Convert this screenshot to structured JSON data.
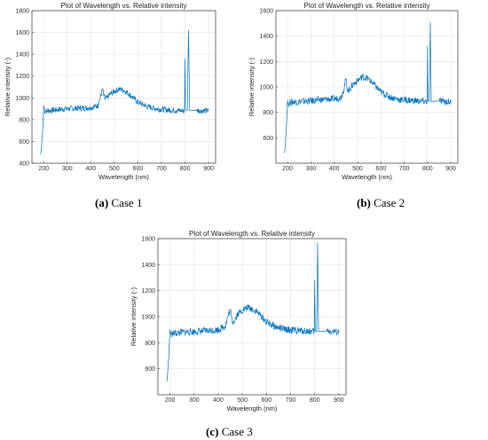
{
  "chart_data": [
    {
      "type": "line",
      "title": "Plot of Wavelength vs. Relative intensity",
      "xlabel": "Wavelength (nm)",
      "ylabel": "Relative intensity (-)",
      "xlim": [
        150,
        930
      ],
      "ylim": [
        400,
        1800
      ],
      "xticks": [
        "200",
        "300",
        "400",
        "500",
        "600",
        "700",
        "800",
        "900"
      ],
      "yticks": [
        "400",
        "600",
        "800",
        "1000",
        "1200",
        "1400",
        "1600",
        "1800"
      ],
      "grid": true,
      "series_color": "#0072BD",
      "caption_letter": "(a)",
      "caption_text": " Case 1",
      "x": [
        187,
        190,
        195,
        200,
        205,
        210,
        250,
        300,
        350,
        400,
        430,
        440,
        450,
        455,
        460,
        470,
        480,
        500,
        520,
        540,
        560,
        580,
        600,
        640,
        680,
        720,
        760,
        798,
        800,
        802,
        810,
        815,
        820,
        850,
        880,
        900
      ],
      "values": [
        480,
        540,
        680,
        930,
        880,
        880,
        890,
        900,
        905,
        910,
        930,
        1000,
        1080,
        1020,
        990,
        1000,
        1030,
        1060,
        1080,
        1070,
        1040,
        1000,
        960,
        920,
        900,
        890,
        885,
        880,
        1360,
        890,
        885,
        1620,
        885,
        885,
        880,
        880
      ]
    },
    {
      "type": "line",
      "title": "Plot of Wavelength vs. Relative intensity",
      "xlabel": "Wavelength (nm)",
      "ylabel": "Relative intensity (-)",
      "xlim": [
        150,
        930
      ],
      "ylim": [
        400,
        1600
      ],
      "xticks": [
        "200",
        "300",
        "400",
        "500",
        "600",
        "700",
        "800",
        "900"
      ],
      "yticks": [
        "600",
        "800",
        "1000",
        "1200",
        "1400",
        "1600"
      ],
      "grid": true,
      "series_color": "#0072BD",
      "caption_letter": "(b)",
      "caption_text": " Case 2",
      "x": [
        187,
        190,
        195,
        200,
        205,
        210,
        250,
        300,
        350,
        400,
        430,
        440,
        450,
        455,
        460,
        470,
        480,
        500,
        520,
        540,
        560,
        580,
        600,
        640,
        680,
        720,
        760,
        798,
        800,
        802,
        808,
        812,
        816,
        850,
        880,
        900
      ],
      "values": [
        480,
        540,
        700,
        900,
        860,
        880,
        885,
        890,
        900,
        905,
        920,
        980,
        1060,
        1000,
        970,
        990,
        1020,
        1050,
        1080,
        1070,
        1040,
        1000,
        960,
        920,
        900,
        895,
        890,
        885,
        1320,
        890,
        885,
        1510,
        885,
        890,
        885,
        880
      ]
    },
    {
      "type": "line",
      "title": "Plot of Wavelength vs. Relative intensity",
      "xlabel": "Wavelength (nm)",
      "ylabel": "Relative intensity (-)",
      "xlim": [
        150,
        930
      ],
      "ylim": [
        400,
        1600
      ],
      "xticks": [
        "200",
        "300",
        "400",
        "500",
        "600",
        "700",
        "800",
        "900"
      ],
      "yticks": [
        "600",
        "800",
        "1000",
        "1200",
        "1400",
        "1600"
      ],
      "grid": true,
      "series_color": "#0072BD",
      "caption_letter": "(c)",
      "caption_text": " Case 3",
      "x": [
        187,
        190,
        195,
        200,
        205,
        210,
        250,
        300,
        350,
        400,
        430,
        440,
        450,
        455,
        460,
        470,
        480,
        500,
        520,
        540,
        560,
        580,
        600,
        640,
        680,
        720,
        760,
        798,
        800,
        802,
        808,
        812,
        816,
        850,
        880,
        900
      ],
      "values": [
        500,
        560,
        700,
        900,
        860,
        870,
        880,
        885,
        890,
        900,
        930,
        1000,
        1050,
        990,
        960,
        980,
        1020,
        1050,
        1070,
        1060,
        1040,
        1000,
        960,
        920,
        900,
        895,
        890,
        885,
        1280,
        890,
        885,
        1570,
        885,
        890,
        885,
        880
      ]
    }
  ]
}
